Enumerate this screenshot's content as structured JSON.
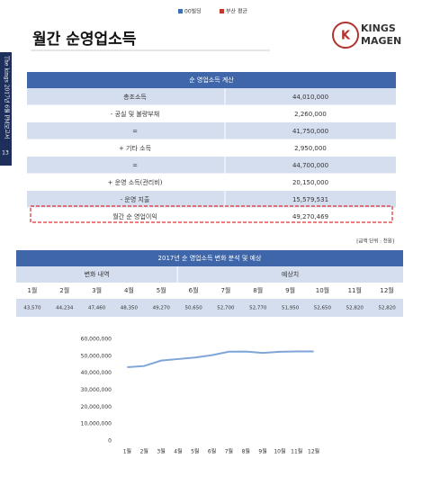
{
  "header": {
    "legend": [
      {
        "label": "00빌딩",
        "color": "#3b6fb6"
      },
      {
        "label": "부산 평균",
        "color": "#c0392b"
      }
    ],
    "title": "월간 순영업소득",
    "logo": [
      "KINGS",
      "MAGEN"
    ]
  },
  "sidebar": {
    "text": "The kings 2017년 6월 PM보고서",
    "page": "13"
  },
  "table1": {
    "title": "순 영업소득 계산",
    "rows": [
      [
        "총조소득",
        "44,010,000"
      ],
      [
        "- 공실 및 불량부채",
        "2,260,000"
      ],
      [
        "=",
        "41,750,000"
      ],
      [
        "+ 기타 소득",
        "2,950,000"
      ],
      [
        "=",
        "44,700,000"
      ],
      [
        "+ 운영 소득(관리비)",
        "20,150,000"
      ],
      [
        "- 운영 지출",
        "15,579,531"
      ],
      [
        "월간 순 영업이익",
        "49,270,469"
      ]
    ]
  },
  "unit_note": "[금액 단위 : 천원]",
  "table2": {
    "title": "2017년 순 영업소득 변화 분석 및 예상",
    "groups": [
      "변화 내역",
      "예상치"
    ],
    "months": [
      "1월",
      "2월",
      "3월",
      "4월",
      "5월",
      "6월",
      "7월",
      "8월",
      "9월",
      "10월",
      "11월",
      "12월"
    ],
    "values": [
      "43,570",
      "44,234",
      "47,460",
      "48,350",
      "49,270",
      "50,650",
      "52,700",
      "52,770",
      "51,950",
      "52,650",
      "52,820",
      "52,820"
    ]
  },
  "chart_data": {
    "type": "line",
    "categories": [
      "1월",
      "2월",
      "3월",
      "4월",
      "5월",
      "6월",
      "7월",
      "8월",
      "9월",
      "10월",
      "11월",
      "12월"
    ],
    "series": [
      {
        "color": "#7ea6d8",
        "values": [
          43570000,
          44234000,
          47460000,
          48350000,
          49270000,
          50650000,
          52700000,
          52770000,
          51950000,
          52650000,
          52820000,
          52820000
        ]
      }
    ],
    "ylim": [
      0,
      60000000
    ],
    "yticks": [
      0,
      {
        "value": 10000000,
        "label": "10,000,000"
      },
      {
        "value": 20000000,
        "label": "20,000,000"
      },
      {
        "value": 30000000,
        "label": "30,000,000"
      },
      {
        "value": 40000000,
        "label": "40,000,000"
      },
      {
        "value": 50000000,
        "label": "50,000,000"
      },
      {
        "value": 60000000,
        "label": "60,000,000"
      }
    ],
    "grid": false
  }
}
